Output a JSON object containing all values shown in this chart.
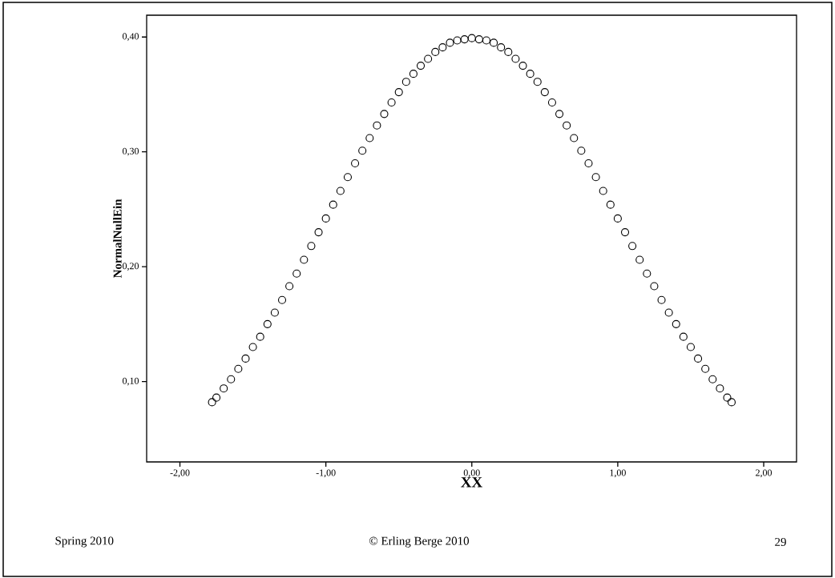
{
  "chart_data": {
    "type": "scatter",
    "xlabel": "XX",
    "ylabel": "NormalNullEin",
    "x": [
      -1.78,
      -1.75,
      -1.7,
      -1.65,
      -1.6,
      -1.55,
      -1.5,
      -1.45,
      -1.4,
      -1.35,
      -1.3,
      -1.25,
      -1.2,
      -1.15,
      -1.1,
      -1.05,
      -1.0,
      -0.95,
      -0.9,
      -0.85,
      -0.8,
      -0.75,
      -0.7,
      -0.65,
      -0.6,
      -0.55,
      -0.5,
      -0.45,
      -0.4,
      -0.35,
      -0.3,
      -0.25,
      -0.2,
      -0.15,
      -0.1,
      -0.05,
      0.0,
      0.05,
      0.1,
      0.15,
      0.2,
      0.25,
      0.3,
      0.35,
      0.4,
      0.45,
      0.5,
      0.55,
      0.6,
      0.65,
      0.7,
      0.75,
      0.8,
      0.85,
      0.9,
      0.95,
      1.0,
      1.05,
      1.1,
      1.15,
      1.2,
      1.25,
      1.3,
      1.35,
      1.4,
      1.45,
      1.5,
      1.55,
      1.6,
      1.65,
      1.7,
      1.75,
      1.78
    ],
    "values": [
      0.082,
      0.086,
      0.094,
      0.102,
      0.111,
      0.12,
      0.13,
      0.139,
      0.15,
      0.16,
      0.171,
      0.183,
      0.194,
      0.206,
      0.218,
      0.23,
      0.242,
      0.254,
      0.266,
      0.278,
      0.29,
      0.301,
      0.312,
      0.323,
      0.333,
      0.343,
      0.352,
      0.361,
      0.368,
      0.375,
      0.381,
      0.387,
      0.391,
      0.395,
      0.397,
      0.398,
      0.399,
      0.398,
      0.397,
      0.395,
      0.391,
      0.387,
      0.381,
      0.375,
      0.368,
      0.361,
      0.352,
      0.343,
      0.333,
      0.323,
      0.312,
      0.301,
      0.29,
      0.278,
      0.266,
      0.254,
      0.242,
      0.23,
      0.218,
      0.206,
      0.194,
      0.183,
      0.171,
      0.16,
      0.15,
      0.139,
      0.13,
      0.12,
      0.111,
      0.102,
      0.094,
      0.086,
      0.082
    ],
    "color": "#000000",
    "marker": "circle",
    "xlim": [
      -2.228,
      2.225
    ],
    "ylim": [
      0.03,
      0.419
    ],
    "xticks": [
      {
        "value": -2,
        "label": "-2,00"
      },
      {
        "value": -1,
        "label": "-1,00"
      },
      {
        "value": 0,
        "label": "0,00"
      },
      {
        "value": 1,
        "label": "1,00"
      },
      {
        "value": 2,
        "label": "2,00"
      }
    ],
    "yticks": [
      {
        "value": 0.1,
        "label": "0,10"
      },
      {
        "value": 0.2,
        "label": "0,20"
      },
      {
        "value": 0.3,
        "label": "0,30"
      },
      {
        "value": 0.4,
        "label": "0,40"
      }
    ],
    "annotations": [
      "Spring 2010",
      "© Erling Berge 2010",
      "29"
    ]
  }
}
